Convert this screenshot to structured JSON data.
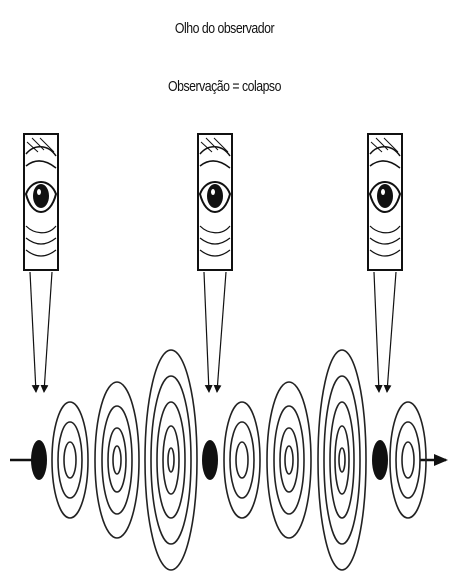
{
  "captions": {
    "line1": "Olho do observador",
    "line2": "Observação = colapso"
  },
  "observers": [
    {
      "name": "observer-1"
    },
    {
      "name": "observer-2"
    },
    {
      "name": "observer-3"
    }
  ],
  "particles": [
    {
      "name": "particle-1"
    },
    {
      "name": "particle-2"
    },
    {
      "name": "particle-3"
    }
  ],
  "colors": {
    "ink": "#111111",
    "background": "#ffffff"
  }
}
